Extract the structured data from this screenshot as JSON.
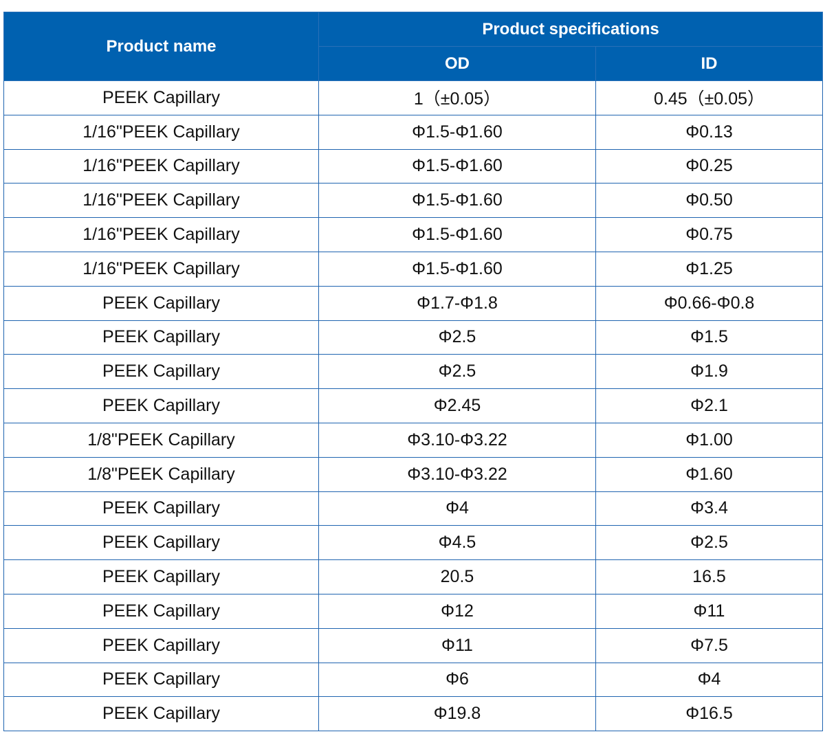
{
  "header": {
    "product_name": "Product name",
    "product_specifications": "Product specifications",
    "od": "OD",
    "id": "ID"
  },
  "colors": {
    "header_bg": "#0061b0",
    "border": "#1f64b0"
  },
  "rows": [
    {
      "name": "PEEK Capillary",
      "od": "1（±0.05）",
      "id": "0.45（±0.05）"
    },
    {
      "name": "1/16\"PEEK Capillary",
      "od": "Φ1.5-Φ1.60",
      "id": "Φ0.13"
    },
    {
      "name": "1/16\"PEEK Capillary",
      "od": "Φ1.5-Φ1.60",
      "id": "Φ0.25"
    },
    {
      "name": "1/16\"PEEK Capillary",
      "od": "Φ1.5-Φ1.60",
      "id": "Φ0.50"
    },
    {
      "name": "1/16\"PEEK Capillary",
      "od": "Φ1.5-Φ1.60",
      "id": "Φ0.75"
    },
    {
      "name": "1/16\"PEEK Capillary",
      "od": "Φ1.5-Φ1.60",
      "id": "Φ1.25"
    },
    {
      "name": "PEEK Capillary",
      "od": "Φ1.7-Φ1.8",
      "id": "Φ0.66-Φ0.8"
    },
    {
      "name": "PEEK Capillary",
      "od": "Φ2.5",
      "id": "Φ1.5"
    },
    {
      "name": "PEEK Capillary",
      "od": "Φ2.5",
      "id": "Φ1.9"
    },
    {
      "name": "PEEK Capillary",
      "od": "Φ2.45",
      "id": "Φ2.1"
    },
    {
      "name": "1/8\"PEEK Capillary",
      "od": "Φ3.10-Φ3.22",
      "id": "Φ1.00"
    },
    {
      "name": "1/8\"PEEK Capillary",
      "od": "Φ3.10-Φ3.22",
      "id": "Φ1.60"
    },
    {
      "name": "PEEK Capillary",
      "od": "Φ4",
      "id": "Φ3.4"
    },
    {
      "name": "PEEK Capillary",
      "od": "Φ4.5",
      "id": "Φ2.5"
    },
    {
      "name": "PEEK Capillary",
      "od": "20.5",
      "id": "16.5"
    },
    {
      "name": "PEEK Capillary",
      "od": "Φ12",
      "id": "Φ11"
    },
    {
      "name": "PEEK Capillary",
      "od": "Φ11",
      "id": "Φ7.5"
    },
    {
      "name": "PEEK Capillary",
      "od": "Φ6",
      "id": "Φ4"
    },
    {
      "name": "PEEK Capillary",
      "od": "Φ19.8",
      "id": "Φ16.5"
    }
  ]
}
